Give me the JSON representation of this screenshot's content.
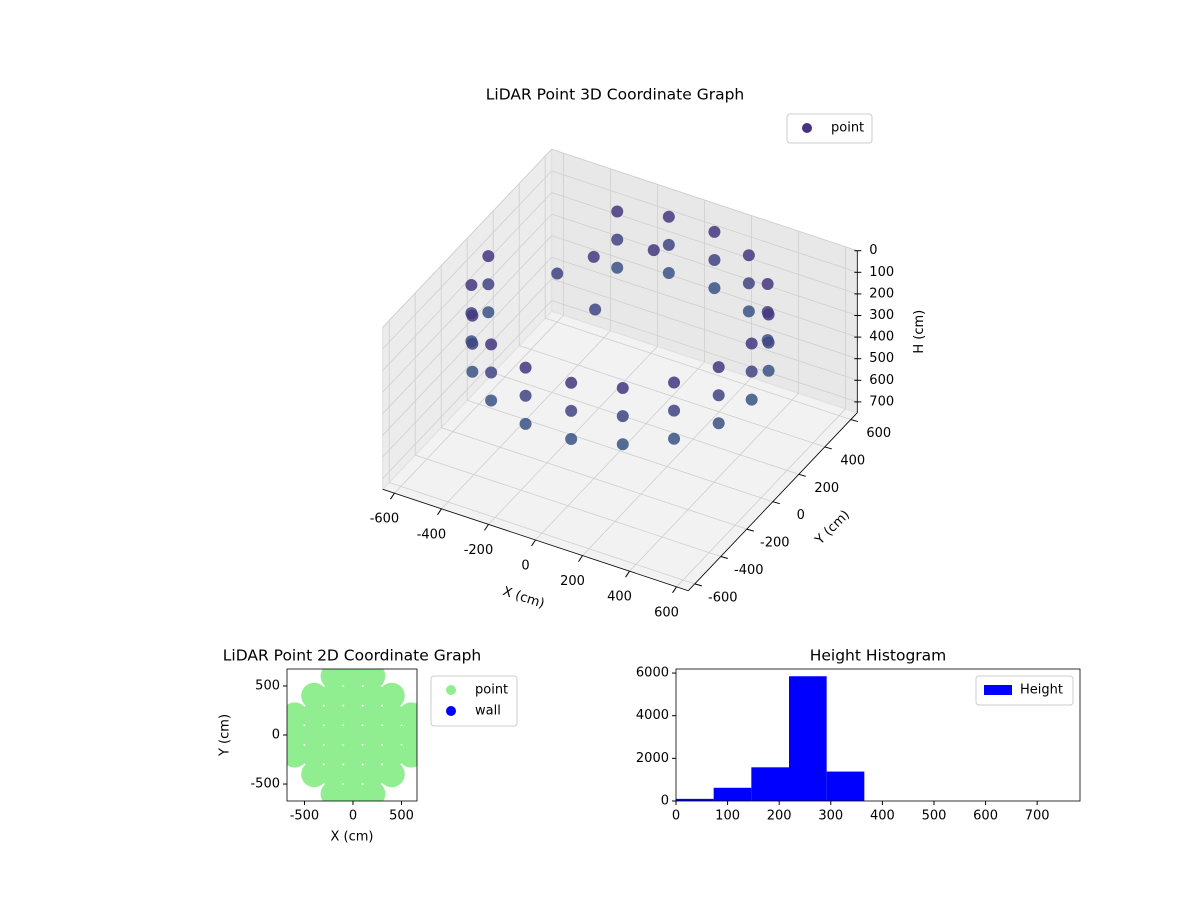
{
  "chart_data": [
    {
      "type": "scatter3d",
      "title": "LiDAR Point 3D Coordinate Graph",
      "xlabel": "X (cm)",
      "ylabel": "Y (cm)",
      "zlabel": "H (cm)",
      "xlim": [
        -650,
        650
      ],
      "ylim": [
        -650,
        650
      ],
      "zlim": [
        750,
        0
      ],
      "xticks": [
        -600,
        -400,
        -200,
        0,
        200,
        400,
        600
      ],
      "yticks": [
        -600,
        -400,
        -200,
        0,
        200,
        400,
        600
      ],
      "zticks": [
        0,
        100,
        200,
        300,
        400,
        500,
        600,
        700
      ],
      "legend": "upper right",
      "series": [
        {
          "name": "point",
          "color": "#46327e",
          "colormap": [
            "#46327e",
            "#277f8e"
          ],
          "x": [
            560,
            526,
            429,
            280,
            97,
            -97,
            -280,
            -560,
            -526,
            -429,
            -280,
            -97,
            97,
            280,
            429,
            526,
            560,
            526,
            429,
            280,
            97,
            -97,
            -280,
            -560,
            -526,
            -429,
            -280,
            -97,
            97,
            280,
            429,
            526,
            560,
            526,
            429,
            280,
            97,
            -97,
            -280,
            -560,
            -526,
            -429,
            -280,
            -97,
            97,
            280,
            429,
            526,
            -350,
            -250,
            -150,
            -50
          ],
          "y": [
            0,
            192,
            360,
            485,
            551,
            551,
            485,
            0,
            -192,
            -360,
            -485,
            -551,
            -551,
            -485,
            -360,
            -192,
            0,
            192,
            360,
            485,
            551,
            551,
            485,
            0,
            -192,
            -360,
            -485,
            -551,
            -551,
            -485,
            -360,
            -192,
            0,
            192,
            360,
            485,
            551,
            551,
            485,
            0,
            -192,
            -360,
            -485,
            -551,
            -551,
            -485,
            -360,
            -192,
            150,
            250,
            80,
            350
          ],
          "z": [
            50,
            50,
            50,
            50,
            50,
            50,
            50,
            50,
            50,
            50,
            50,
            50,
            50,
            50,
            50,
            50,
            180,
            180,
            180,
            180,
            180,
            180,
            180,
            180,
            180,
            180,
            180,
            180,
            180,
            180,
            180,
            180,
            310,
            310,
            310,
            310,
            310,
            310,
            310,
            310,
            310,
            310,
            310,
            310,
            310,
            310,
            310,
            310,
            150,
            100,
            200,
            60
          ]
        }
      ]
    },
    {
      "type": "scatter",
      "title": "LiDAR Point 2D Coordinate Graph",
      "xlabel": "X (cm)",
      "ylabel": "Y (cm)",
      "xlim": [
        -680,
        660
      ],
      "ylim": [
        -673,
        673
      ],
      "xticks": [
        -500,
        0,
        500
      ],
      "yticks": [
        -500,
        0,
        500
      ],
      "legend": "outside right",
      "series": [
        {
          "name": "point",
          "color": "#90ee90",
          "x": [
            -600,
            -600,
            -600,
            -400,
            -400,
            -400,
            -400,
            -400,
            -200,
            -200,
            -200,
            -200,
            -200,
            -200,
            -200,
            0,
            0,
            0,
            0,
            0,
            0,
            0,
            200,
            200,
            200,
            200,
            200,
            200,
            200,
            400,
            400,
            400,
            400,
            400,
            600,
            600,
            600
          ],
          "y": [
            -200,
            0,
            200,
            -400,
            -200,
            0,
            200,
            400,
            -600,
            -400,
            -200,
            0,
            200,
            400,
            600,
            -600,
            -400,
            -200,
            0,
            200,
            400,
            600,
            -600,
            -400,
            -200,
            0,
            200,
            400,
            600,
            -400,
            -200,
            0,
            200,
            400,
            -200,
            0,
            200
          ]
        },
        {
          "name": "wall",
          "color": "#0000ff",
          "x": [],
          "y": []
        }
      ]
    },
    {
      "type": "histogram",
      "title": "Height Histogram",
      "bins": [
        0,
        73,
        146,
        219,
        292,
        365,
        438,
        511,
        584,
        657,
        730
      ],
      "values": [
        100,
        620,
        1580,
        5850,
        1380,
        0,
        0,
        0,
        0,
        0
      ],
      "series_name": "Height",
      "color": "#0000ff",
      "xlim": [
        0,
        783
      ],
      "ylim": [
        0,
        6190
      ],
      "xticks": [
        0,
        100,
        200,
        300,
        400,
        500,
        600,
        700
      ],
      "yticks": [
        0,
        2000,
        4000,
        6000
      ],
      "legend": "upper right"
    }
  ]
}
